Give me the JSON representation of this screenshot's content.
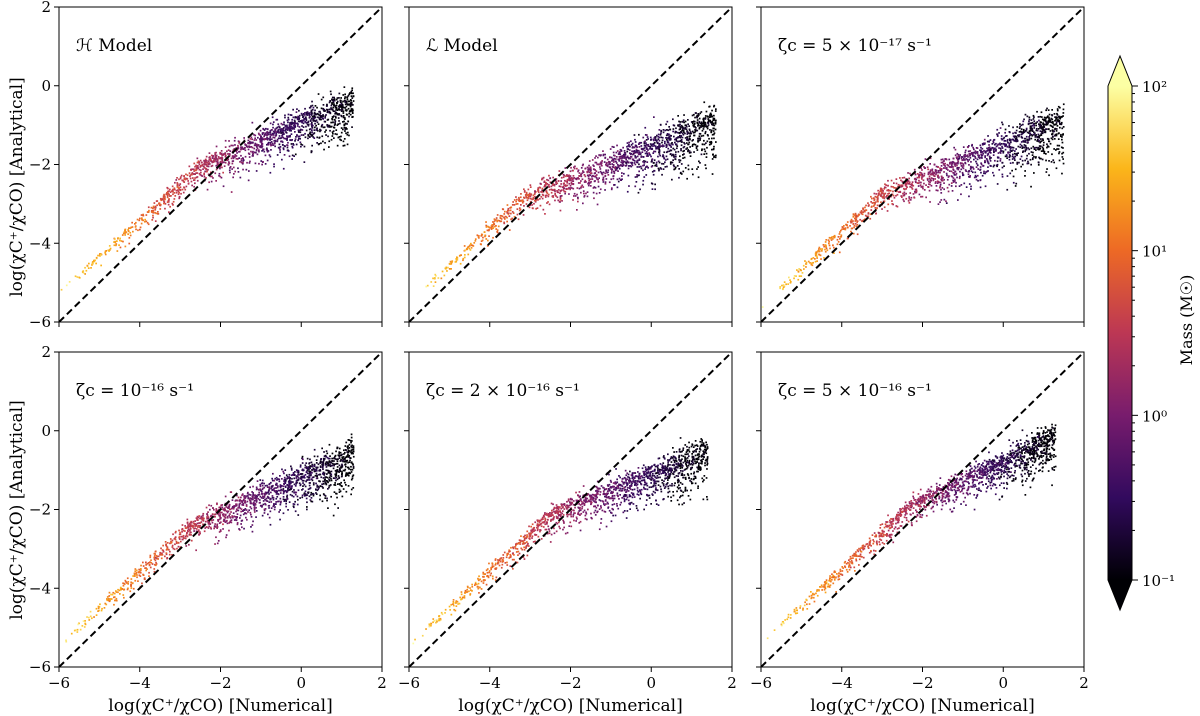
{
  "chart_data": {
    "type": "scatter",
    "layout": "2x3 grid of panels sharing axes",
    "x_ticks": [
      -6,
      -4,
      -2,
      0,
      2
    ],
    "y_ticks": [
      -6,
      -4,
      -2,
      0,
      2
    ],
    "x_tick_labels": [
      "−6",
      "−4",
      "−2",
      "0",
      "2"
    ],
    "y_tick_labels": [
      "−6",
      "−4",
      "−2",
      "0",
      "2"
    ],
    "xlim": [
      -6,
      2
    ],
    "ylim": [
      -6,
      2
    ],
    "xlabel": "log(χC⁺/χCO) [Numerical]",
    "ylabel": "log(χC⁺/χCO) [Analytical]",
    "reference_line": {
      "style": "dashed",
      "color": "#000000",
      "from": [
        -6,
        -6
      ],
      "to": [
        2,
        2
      ]
    },
    "panels": [
      {
        "title": "ℋ Model",
        "cloud": {
          "x_start": -6.0,
          "x_end": 1.3,
          "knee": -2.5,
          "low_slope": 0.92,
          "high_slope": 0.42,
          "offset": 0.25,
          "spread": 0.33
        }
      },
      {
        "title": "ℒ Model",
        "cloud": {
          "x_start": -6.0,
          "x_end": 1.6,
          "knee": -3.2,
          "low_slope": 0.93,
          "high_slope": 0.4,
          "offset": 0.08,
          "spread": 0.4
        }
      },
      {
        "title": "ζc = 5 × 10⁻¹⁷ s⁻¹",
        "cloud": {
          "x_start": -6.0,
          "x_end": 1.5,
          "knee": -3.0,
          "low_slope": 0.95,
          "high_slope": 0.4,
          "offset": 0.1,
          "spread": 0.38
        }
      },
      {
        "title": "ζc = 10⁻¹⁶ s⁻¹",
        "cloud": {
          "x_start": -6.0,
          "x_end": 1.3,
          "knee": -2.8,
          "low_slope": 0.93,
          "high_slope": 0.44,
          "offset": 0.15,
          "spread": 0.36
        }
      },
      {
        "title": "ζc = 2 × 10⁻¹⁶ s⁻¹",
        "cloud": {
          "x_start": -6.0,
          "x_end": 1.4,
          "knee": -2.5,
          "low_slope": 0.93,
          "high_slope": 0.4,
          "offset": 0.15,
          "spread": 0.35
        }
      },
      {
        "title": "ζc = 5 × 10⁻¹⁶ s⁻¹",
        "cloud": {
          "x_start": -6.0,
          "x_end": 1.3,
          "knee": -2.3,
          "low_slope": 0.93,
          "high_slope": 0.48,
          "offset": 0.2,
          "spread": 0.3
        }
      }
    ],
    "colorbar": {
      "label": "Mass (M☉)",
      "scale": "log",
      "range": [
        0.1,
        100
      ],
      "ticks": [
        {
          "value": 0.1,
          "label": "10⁻¹"
        },
        {
          "value": 1,
          "label": "10⁰"
        },
        {
          "value": 10,
          "label": "10¹"
        },
        {
          "value": 100,
          "label": "10²"
        }
      ],
      "colormap": [
        "#000004",
        "#320a5e",
        "#781c6d",
        "#bc3754",
        "#ed6925",
        "#fbb61a",
        "#fcffa4"
      ],
      "extend": "both"
    }
  }
}
